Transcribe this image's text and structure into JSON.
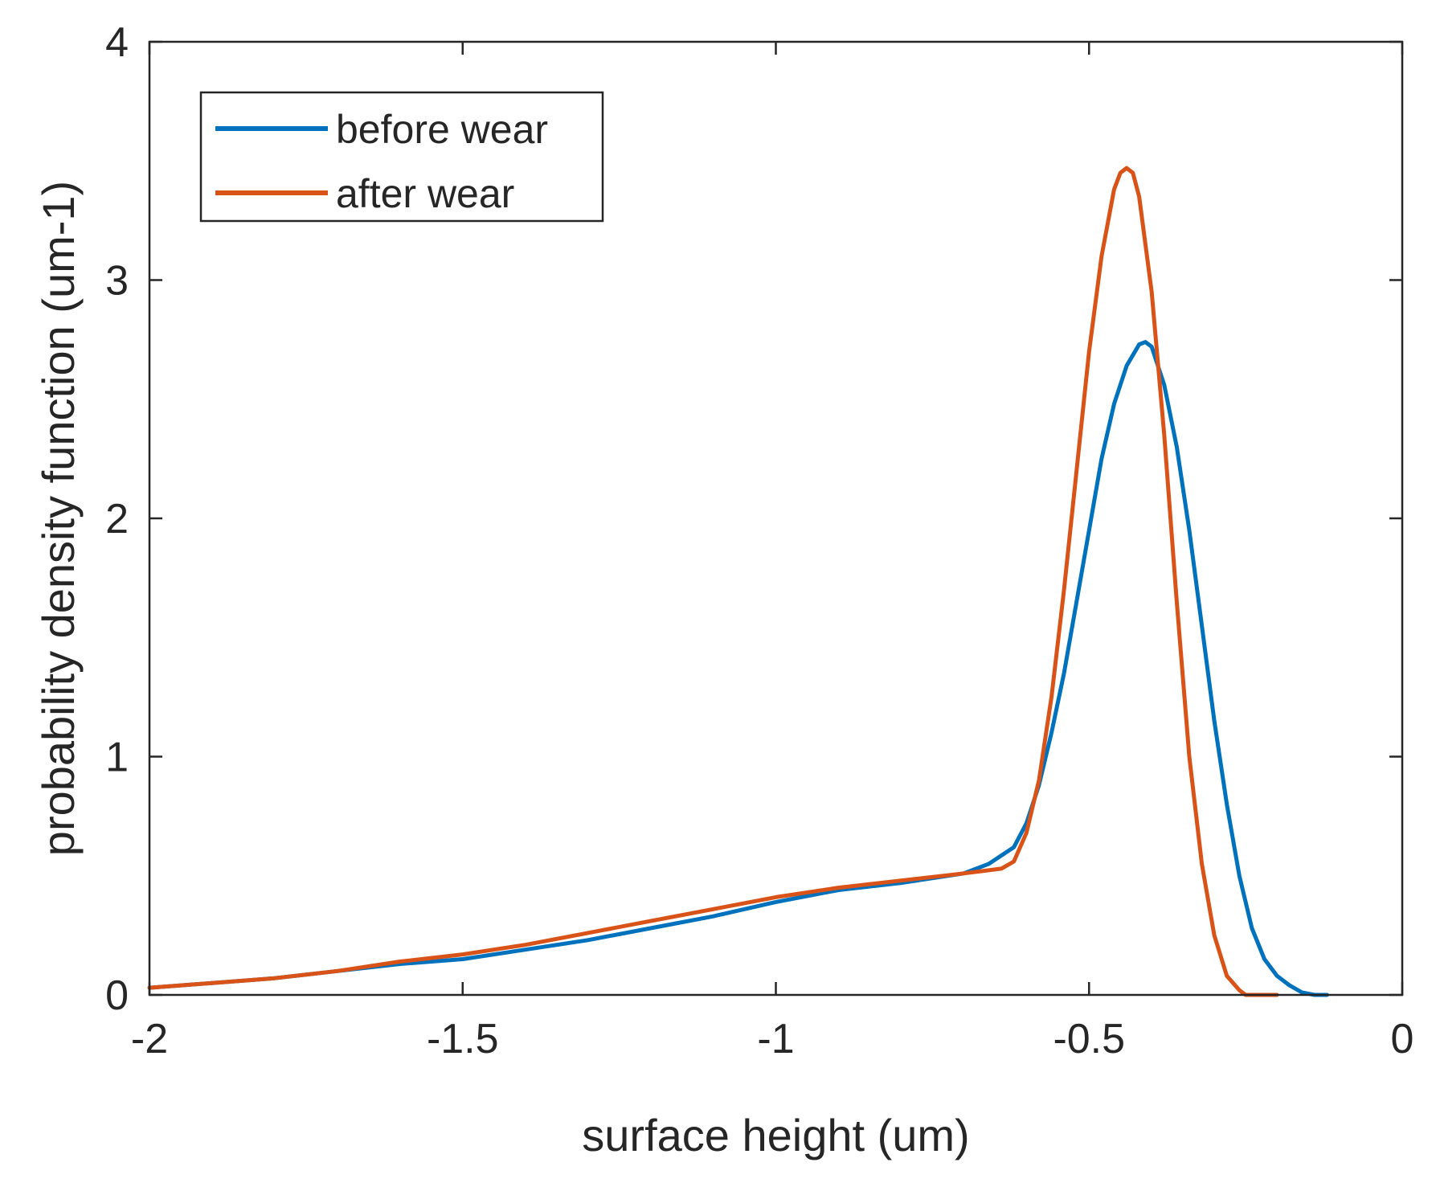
{
  "colors": {
    "before_wear": "#0072BD",
    "after_wear": "#D95319",
    "axis": "#262626",
    "background": "#FFFFFF"
  },
  "chart_data": {
    "type": "line",
    "title": "",
    "xlabel": "surface height (um)",
    "ylabel": "probability density function (um-1)",
    "xlim": [
      -2,
      0
    ],
    "ylim": [
      0,
      4
    ],
    "x_ticks": [
      -2,
      -1.5,
      -1,
      -0.5,
      0
    ],
    "x_tick_labels": [
      "-2",
      "-1.5",
      "-1",
      "-0.5",
      "0"
    ],
    "y_ticks": [
      0,
      1,
      2,
      3,
      4
    ],
    "y_tick_labels": [
      "0",
      "1",
      "2",
      "3",
      "4"
    ],
    "grid": false,
    "legend": {
      "location": "top-left",
      "entries": [
        "before wear",
        "after wear"
      ]
    },
    "series": [
      {
        "name": "before wear",
        "color": "#0072BD",
        "x": [
          -2.0,
          -1.9,
          -1.8,
          -1.7,
          -1.6,
          -1.5,
          -1.4,
          -1.3,
          -1.2,
          -1.1,
          -1.0,
          -0.9,
          -0.8,
          -0.7,
          -0.66,
          -0.62,
          -0.6,
          -0.58,
          -0.56,
          -0.54,
          -0.52,
          -0.5,
          -0.48,
          -0.46,
          -0.44,
          -0.42,
          -0.41,
          -0.4,
          -0.38,
          -0.36,
          -0.34,
          -0.32,
          -0.3,
          -0.28,
          -0.26,
          -0.24,
          -0.22,
          -0.2,
          -0.18,
          -0.16,
          -0.14,
          -0.12
        ],
        "y": [
          0.03,
          0.05,
          0.07,
          0.1,
          0.13,
          0.15,
          0.19,
          0.23,
          0.28,
          0.33,
          0.39,
          0.44,
          0.47,
          0.51,
          0.55,
          0.62,
          0.72,
          0.88,
          1.1,
          1.35,
          1.65,
          1.95,
          2.25,
          2.48,
          2.64,
          2.73,
          2.74,
          2.72,
          2.56,
          2.3,
          1.95,
          1.55,
          1.15,
          0.8,
          0.5,
          0.28,
          0.15,
          0.08,
          0.04,
          0.01,
          0.0,
          0.0
        ]
      },
      {
        "name": "after wear",
        "color": "#D95319",
        "x": [
          -2.0,
          -1.9,
          -1.8,
          -1.7,
          -1.6,
          -1.5,
          -1.4,
          -1.3,
          -1.2,
          -1.1,
          -1.0,
          -0.9,
          -0.8,
          -0.7,
          -0.64,
          -0.62,
          -0.6,
          -0.58,
          -0.56,
          -0.54,
          -0.52,
          -0.5,
          -0.48,
          -0.46,
          -0.45,
          -0.44,
          -0.43,
          -0.42,
          -0.4,
          -0.38,
          -0.36,
          -0.34,
          -0.32,
          -0.3,
          -0.28,
          -0.26,
          -0.25,
          -0.24,
          -0.22,
          -0.2
        ],
        "y": [
          0.03,
          0.05,
          0.07,
          0.1,
          0.14,
          0.17,
          0.21,
          0.26,
          0.31,
          0.36,
          0.41,
          0.45,
          0.48,
          0.51,
          0.53,
          0.56,
          0.68,
          0.9,
          1.25,
          1.7,
          2.2,
          2.7,
          3.1,
          3.38,
          3.45,
          3.47,
          3.45,
          3.35,
          2.95,
          2.35,
          1.65,
          1.0,
          0.55,
          0.25,
          0.08,
          0.02,
          0.0,
          0.0,
          0.0,
          0.0
        ]
      }
    ]
  }
}
